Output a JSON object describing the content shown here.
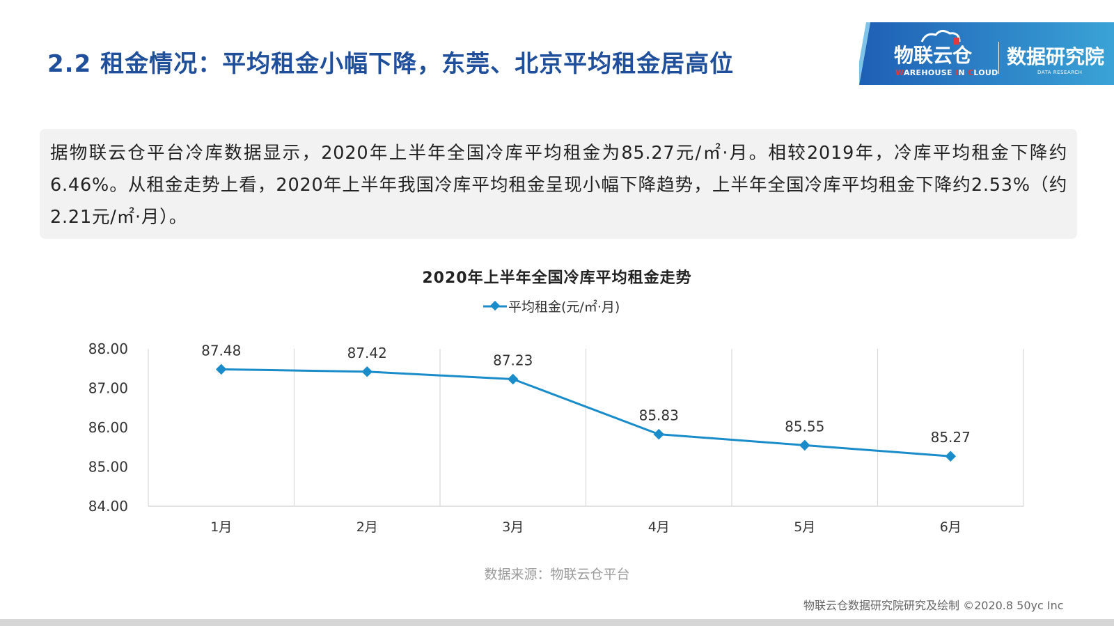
{
  "header": {
    "title": "2.2 租金情况：平均租金小幅下降，东莞、北京平均租金居高位"
  },
  "logo": {
    "brand_cn": "物联云仓",
    "brand_en_pre": "W",
    "brand_en_mid": "AREHOUSE ",
    "brand_en_i": "I",
    "brand_en_n": "N ",
    "brand_en_c": "C",
    "brand_en_end": "LOUD",
    "research_cn": "数据研究院",
    "research_en": "DATA RESEARCH",
    "colors": {
      "blue_start": "#1e5fb5",
      "blue_end": "#3aa3d6",
      "accent": "#e23a3a"
    }
  },
  "summary": {
    "text": "据物联云仓平台冷库数据显示，2020年上半年全国冷库平均租金为85.27元/㎡·月。相较2019年，冷库平均租金下降约6.46%。从租金走势上看，2020年上半年我国冷库平均租金呈现小幅下降趋势，上半年全国冷库平均租金下降约2.53%（约2.21元/㎡·月）。"
  },
  "chart_data": {
    "type": "line",
    "title": "2020年上半年全国冷库平均租金走势",
    "categories": [
      "1月",
      "2月",
      "3月",
      "4月",
      "5月",
      "6月"
    ],
    "series": [
      {
        "name": "平均租金(元/㎡·月)",
        "values": [
          87.48,
          87.42,
          87.23,
          85.83,
          85.55,
          85.27
        ],
        "color": "#1a8cc9"
      }
    ],
    "ylim": [
      84,
      88
    ],
    "yticks": [
      "84.00",
      "85.00",
      "86.00",
      "87.00",
      "88.00"
    ],
    "xlabel": "",
    "ylabel": "",
    "legend": "top-center",
    "grid": "vertical"
  },
  "footer": {
    "source": "数据来源：物联云仓平台",
    "credit": "物联云仓数据研究院研究及绘制    ©2020.8 50yc Inc"
  }
}
